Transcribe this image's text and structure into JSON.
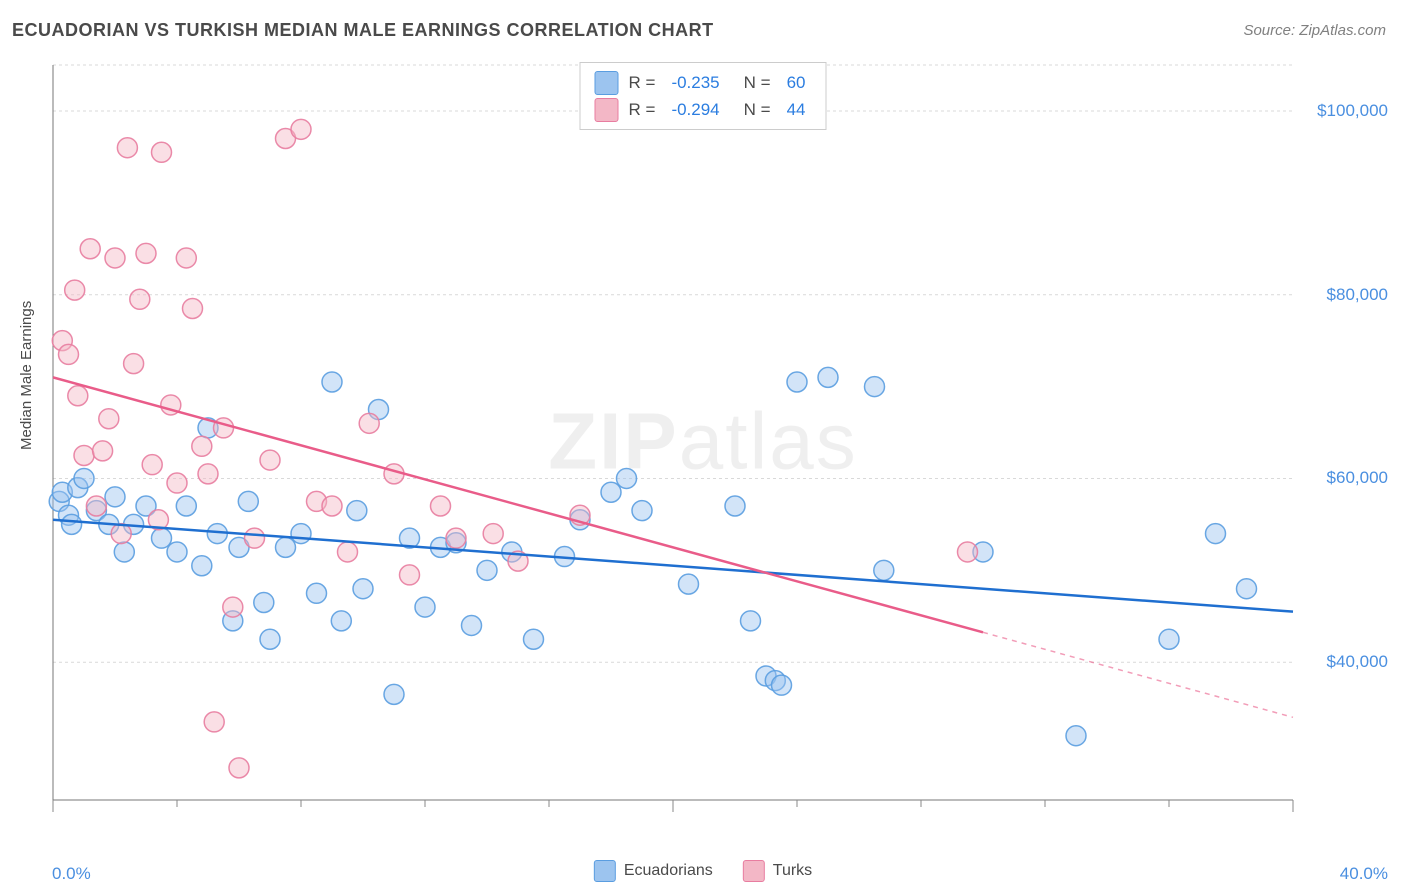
{
  "title": "ECUADORIAN VS TURKISH MEDIAN MALE EARNINGS CORRELATION CHART",
  "source": "Source: ZipAtlas.com",
  "yaxis_label": "Median Male Earnings",
  "watermark_bold": "ZIP",
  "watermark_rest": "atlas",
  "chart": {
    "type": "scatter",
    "background_color": "#ffffff",
    "grid_color": "#d9d9d9",
    "axis_line_color": "#777777",
    "tick_color": "#888888",
    "xlim": [
      0,
      40
    ],
    "ylim": [
      25000,
      105000
    ],
    "x_ticks_major": [
      0,
      20,
      40
    ],
    "x_ticks_minor": [
      4,
      8,
      12,
      16,
      24,
      28,
      32,
      36
    ],
    "y_grid": [
      40000,
      60000,
      80000,
      100000
    ],
    "y_tick_labels": [
      "$40,000",
      "$60,000",
      "$80,000",
      "$100,000"
    ],
    "x_tick_labels": {
      "left": "0.0%",
      "right": "40.0%"
    },
    "marker_radius": 10,
    "marker_opacity": 0.45,
    "marker_stroke_opacity": 0.9,
    "line_width": 2.5,
    "series": [
      {
        "name": "Ecuadorians",
        "color_fill": "#9cc4ef",
        "color_stroke": "#5a9de0",
        "line_color": "#1f6fd0",
        "R": "-0.235",
        "N": "60",
        "trend": {
          "x1": 0,
          "y1": 55500,
          "x2": 40,
          "y2": 45500,
          "dash_from_x": null
        },
        "points": [
          [
            0.2,
            57500
          ],
          [
            0.3,
            58500
          ],
          [
            0.5,
            56000
          ],
          [
            0.6,
            55000
          ],
          [
            0.8,
            59000
          ],
          [
            1.0,
            60000
          ],
          [
            1.4,
            56500
          ],
          [
            1.8,
            55000
          ],
          [
            2.0,
            58000
          ],
          [
            2.3,
            52000
          ],
          [
            2.6,
            55000
          ],
          [
            3.0,
            57000
          ],
          [
            3.5,
            53500
          ],
          [
            4.0,
            52000
          ],
          [
            4.3,
            57000
          ],
          [
            4.8,
            50500
          ],
          [
            5.0,
            65500
          ],
          [
            5.3,
            54000
          ],
          [
            5.8,
            44500
          ],
          [
            6.0,
            52500
          ],
          [
            6.3,
            57500
          ],
          [
            6.8,
            46500
          ],
          [
            7.0,
            42500
          ],
          [
            7.5,
            52500
          ],
          [
            8.0,
            54000
          ],
          [
            8.5,
            47500
          ],
          [
            9.0,
            70500
          ],
          [
            9.3,
            44500
          ],
          [
            9.8,
            56500
          ],
          [
            10.0,
            48000
          ],
          [
            10.5,
            67500
          ],
          [
            11.0,
            36500
          ],
          [
            11.5,
            53500
          ],
          [
            12.0,
            46000
          ],
          [
            12.5,
            52500
          ],
          [
            13.0,
            53000
          ],
          [
            13.5,
            44000
          ],
          [
            14.0,
            50000
          ],
          [
            14.8,
            52000
          ],
          [
            15.5,
            42500
          ],
          [
            16.5,
            51500
          ],
          [
            17.0,
            55500
          ],
          [
            18.0,
            58500
          ],
          [
            18.5,
            60000
          ],
          [
            19.0,
            56500
          ],
          [
            20.5,
            48500
          ],
          [
            22.0,
            57000
          ],
          [
            22.5,
            44500
          ],
          [
            23.0,
            38500
          ],
          [
            23.3,
            38000
          ],
          [
            23.5,
            37500
          ],
          [
            24.0,
            70500
          ],
          [
            25.0,
            71000
          ],
          [
            26.5,
            70000
          ],
          [
            26.8,
            50000
          ],
          [
            30.0,
            52000
          ],
          [
            33.0,
            32000
          ],
          [
            36.0,
            42500
          ],
          [
            37.5,
            54000
          ],
          [
            38.5,
            48000
          ]
        ]
      },
      {
        "name": "Turks",
        "color_fill": "#f3b7c6",
        "color_stroke": "#e87da0",
        "line_color": "#e95c89",
        "R": "-0.294",
        "N": "44",
        "trend": {
          "x1": 0,
          "y1": 71000,
          "x2": 40,
          "y2": 34000,
          "dash_from_x": 30
        },
        "points": [
          [
            0.3,
            75000
          ],
          [
            0.5,
            73500
          ],
          [
            0.7,
            80500
          ],
          [
            0.8,
            69000
          ],
          [
            1.0,
            62500
          ],
          [
            1.2,
            85000
          ],
          [
            1.4,
            57000
          ],
          [
            1.6,
            63000
          ],
          [
            1.8,
            66500
          ],
          [
            2.0,
            84000
          ],
          [
            2.2,
            54000
          ],
          [
            2.4,
            96000
          ],
          [
            2.6,
            72500
          ],
          [
            2.8,
            79500
          ],
          [
            3.0,
            84500
          ],
          [
            3.2,
            61500
          ],
          [
            3.4,
            55500
          ],
          [
            3.5,
            95500
          ],
          [
            3.8,
            68000
          ],
          [
            4.0,
            59500
          ],
          [
            4.3,
            84000
          ],
          [
            4.5,
            78500
          ],
          [
            4.8,
            63500
          ],
          [
            5.0,
            60500
          ],
          [
            5.2,
            33500
          ],
          [
            5.5,
            65500
          ],
          [
            5.8,
            46000
          ],
          [
            6.0,
            28500
          ],
          [
            6.5,
            53500
          ],
          [
            7.0,
            62000
          ],
          [
            7.5,
            97000
          ],
          [
            8.0,
            98000
          ],
          [
            8.5,
            57500
          ],
          [
            9.0,
            57000
          ],
          [
            9.5,
            52000
          ],
          [
            10.2,
            66000
          ],
          [
            11.0,
            60500
          ],
          [
            11.5,
            49500
          ],
          [
            12.5,
            57000
          ],
          [
            13.0,
            53500
          ],
          [
            14.2,
            54000
          ],
          [
            15.0,
            51000
          ],
          [
            17.0,
            56000
          ],
          [
            29.5,
            52000
          ]
        ]
      }
    ],
    "legend_bottom": [
      {
        "label": "Ecuadorians",
        "fill": "#9cc4ef",
        "stroke": "#5a9de0"
      },
      {
        "label": "Turks",
        "fill": "#f3b7c6",
        "stroke": "#e87da0"
      }
    ]
  }
}
